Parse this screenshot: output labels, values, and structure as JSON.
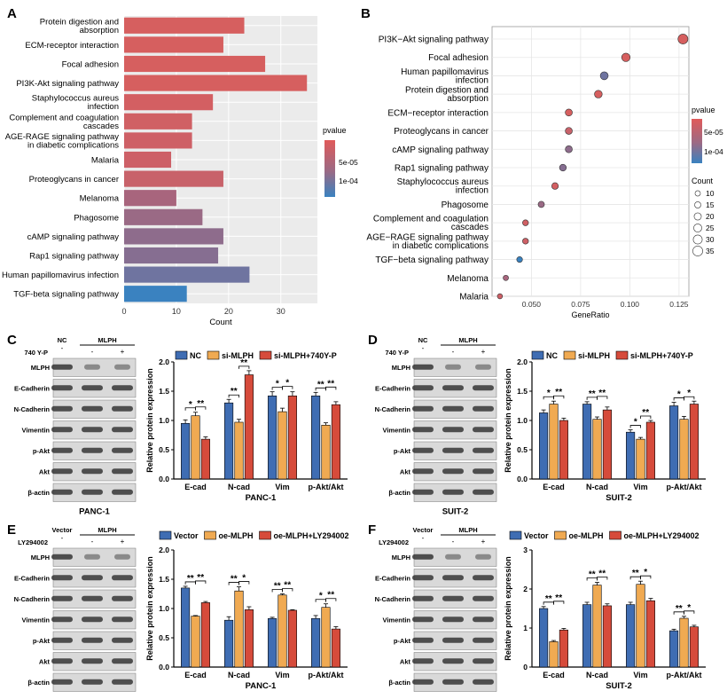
{
  "panels": {
    "A": {
      "letter": "A",
      "type": "bar",
      "orientation": "horizontal",
      "categories": [
        "Protein digestion and absorption",
        "ECM-receptor interaction",
        "Focal adhesion",
        "PI3K-Akt signaling pathway",
        "Staphylococcus aureus infection",
        "Complement and coagulation cascades",
        "AGE-RAGE signaling pathway in diabetic complications",
        "Malaria",
        "Proteoglycans in cancer",
        "Melanoma",
        "Phagosome",
        "cAMP signaling pathway",
        "Rap1 signaling pathway",
        "Human papillomavirus infection",
        "TGF-beta signaling pathway"
      ],
      "label_lines": [
        [
          "Protein digestion and",
          "absorption"
        ],
        [
          "ECM-receptor interaction"
        ],
        [
          "Focal adhesion"
        ],
        [
          "PI3K-Akt signaling pathway"
        ],
        [
          "Staphylococcus aureus",
          "infection"
        ],
        [
          "Complement and coagulation",
          "cascades"
        ],
        [
          "AGE-RAGE signaling pathway",
          "in diabetic complications"
        ],
        [
          "Malaria"
        ],
        [
          "Proteoglycans in cancer"
        ],
        [
          "Melanoma"
        ],
        [
          "Phagosome"
        ],
        [
          "cAMP signaling pathway"
        ],
        [
          "Rap1 signaling pathway"
        ],
        [
          "Human papillomavirus infection"
        ],
        [
          "TGF-beta signaling pathway"
        ]
      ],
      "values": [
        23,
        19,
        27,
        35,
        17,
        13,
        13,
        9,
        19,
        10,
        15,
        19,
        18,
        24,
        12
      ],
      "colors": [
        "#d65f5f",
        "#d65f5f",
        "#d65f5f",
        "#d65f5f",
        "#d35f62",
        "#d06064",
        "#ce6066",
        "#cd6067",
        "#c8626a",
        "#a8657d",
        "#9a6a85",
        "#8e6c8c",
        "#866e91",
        "#6f74a0",
        "#3a82c0"
      ],
      "xlabel": "Count",
      "xlim": [
        0,
        37
      ],
      "xticks": [
        0,
        10,
        20,
        30
      ],
      "legend": {
        "title": "pvalue",
        "labels": [
          "5e-05",
          "1e-04"
        ],
        "color_high": "#e05a5a",
        "color_low": "#3a82c0"
      }
    },
    "B": {
      "letter": "B",
      "type": "scatter",
      "categories": [
        "PI3K-Akt signaling pathway",
        "Focal adhesion",
        "Human papillomavirus infection",
        "Protein digestion and absorption",
        "ECM-receptor interaction",
        "Proteoglycans in cancer",
        "cAMP signaling pathway",
        "Rap1 signaling pathway",
        "Staphylococcus aureus infection",
        "Phagosome",
        "Complement and coagulation cascades",
        "AGE-RAGE signaling pathway in diabetic complications",
        "TGF-beta signaling pathway",
        "Melanoma",
        "Malaria"
      ],
      "label_lines": [
        [
          "PI3K−Akt signaling pathway"
        ],
        [
          "Focal adhesion"
        ],
        [
          "Human papillomavirus",
          "infection"
        ],
        [
          "Protein digestion and",
          "absorption"
        ],
        [
          "ECM−receptor interaction"
        ],
        [
          "Proteoglycans in cancer"
        ],
        [
          "cAMP signaling pathway"
        ],
        [
          "Rap1 signaling pathway"
        ],
        [
          "Staphylococcus aureus",
          "infection"
        ],
        [
          "Phagosome"
        ],
        [
          "Complement and coagulation",
          "cascades"
        ],
        [
          "AGE−RAGE signaling pathway",
          "in diabetic complications"
        ],
        [
          "TGF−beta signaling pathway"
        ],
        [
          "Melanoma"
        ],
        [
          "Malaria"
        ]
      ],
      "gene_ratio": [
        0.127,
        0.098,
        0.087,
        0.084,
        0.069,
        0.069,
        0.069,
        0.066,
        0.062,
        0.055,
        0.047,
        0.047,
        0.044,
        0.037,
        0.034
      ],
      "count": [
        35,
        27,
        24,
        23,
        19,
        19,
        19,
        18,
        17,
        15,
        13,
        13,
        12,
        10,
        9
      ],
      "colors": [
        "#d65f5f",
        "#d65f5f",
        "#6f74a0",
        "#d65f5f",
        "#d65f5f",
        "#c8626a",
        "#8e6c8c",
        "#866e91",
        "#d35f62",
        "#9a6a85",
        "#d06064",
        "#ce6066",
        "#3a82c0",
        "#a8657d",
        "#cd6067"
      ],
      "xlabel": "GeneRatio",
      "xlim": [
        0.03,
        0.13
      ],
      "xticks": [
        0.05,
        0.075,
        0.1,
        0.125
      ],
      "xtick_labels": [
        "0.050",
        "0.075",
        "0.100",
        "0.125"
      ],
      "legend_pvalue": {
        "title": "pvalue",
        "labels": [
          "5e-05",
          "1e-04"
        ]
      },
      "legend_count": {
        "title": "Count",
        "labels": [
          "10",
          "15",
          "20",
          "25",
          "30",
          "35"
        ],
        "values": [
          10,
          15,
          20,
          25,
          30,
          35
        ]
      }
    },
    "C": {
      "letter": "C",
      "blot": {
        "treat_label": "740 Y-P",
        "col_headers": [
          "NC",
          "MLPH"
        ],
        "treat_signs": [
          "-",
          "-",
          "+"
        ],
        "rows": [
          "MLPH",
          "E-Cadherin",
          "N-Cadherin",
          "Vimentin",
          "p-Akt",
          "Akt",
          "β-actin"
        ],
        "cell_line": "PANC-1"
      },
      "chart": {
        "type": "bar",
        "categories": [
          "E-cad",
          "N-cad",
          "Vim",
          "p-Akt/Akt"
        ],
        "series": [
          {
            "name": "NC",
            "values": [
              0.95,
              1.3,
              1.42,
              1.42
            ],
            "errors": [
              0.06,
              0.06,
              0.07,
              0.06
            ]
          },
          {
            "name": "si-MLPH",
            "values": [
              1.08,
              0.97,
              1.15,
              0.92
            ],
            "errors": [
              0.06,
              0.05,
              0.06,
              0.04
            ]
          },
          {
            "name": "si-MLPH+740Y-P",
            "values": [
              0.68,
              1.78,
              1.42,
              1.27
            ],
            "errors": [
              0.04,
              0.07,
              0.07,
              0.05
            ]
          }
        ],
        "colors": [
          "#3f6db3",
          "#f0aa52",
          "#d64b3b"
        ],
        "ylabel": "Relative protein expression",
        "ylim": [
          0,
          2.0
        ],
        "yticks": [
          0.0,
          0.5,
          1.0,
          1.5,
          2.0
        ],
        "ytick_labels": [
          "0.0",
          "0.5",
          "1.0",
          "1.5",
          "2.0"
        ],
        "sig_inner": [
          "*",
          "**",
          "*",
          "**"
        ],
        "sig_outer": [
          "**",
          "**",
          "*",
          "**"
        ],
        "xlabel": "PANC-1"
      }
    },
    "D": {
      "letter": "D",
      "blot": {
        "treat_label": "740 Y-P",
        "col_headers": [
          "NC",
          "MLPH"
        ],
        "treat_signs": [
          "-",
          "-",
          "+"
        ],
        "rows": [
          "MLPH",
          "E-Cadherin",
          "N-Cadherin",
          "Vimentin",
          "p-Akt",
          "Akt",
          "β-actin"
        ],
        "cell_line": "SUIT-2"
      },
      "chart": {
        "type": "bar",
        "categories": [
          "E-cad",
          "N-cad",
          "Vim",
          "p-Akt/Akt"
        ],
        "series": [
          {
            "name": "NC",
            "values": [
              1.13,
              1.28,
              0.8,
              1.25
            ],
            "errors": [
              0.05,
              0.04,
              0.04,
              0.06
            ]
          },
          {
            "name": "si-MLPH",
            "values": [
              1.28,
              1.02,
              0.68,
              1.02
            ],
            "errors": [
              0.05,
              0.04,
              0.03,
              0.05
            ]
          },
          {
            "name": "si-MLPH+740Y-P",
            "values": [
              1.0,
              1.18,
              0.97,
              1.28
            ],
            "errors": [
              0.04,
              0.05,
              0.03,
              0.05
            ]
          }
        ],
        "colors": [
          "#3f6db3",
          "#f0aa52",
          "#d64b3b"
        ],
        "ylabel": "Relative protein expression",
        "ylim": [
          0,
          2.0
        ],
        "yticks": [
          0.0,
          0.5,
          1.0,
          1.5,
          2.0
        ],
        "ytick_labels": [
          "0.0",
          "0.5",
          "1.0",
          "1.5",
          "2.0"
        ],
        "sig_inner": [
          "*",
          "**",
          "*",
          "*"
        ],
        "sig_outer": [
          "**",
          "**",
          "**",
          "*"
        ],
        "xlabel": "SUIT-2"
      }
    },
    "E": {
      "letter": "E",
      "blot": {
        "treat_label": "LY294002",
        "col_headers": [
          "Vector",
          "MLPH"
        ],
        "treat_signs": [
          "-",
          "-",
          "+"
        ],
        "rows": [
          "MLPH",
          "E-Cadherin",
          "N-Cadherin",
          "Vimentin",
          "p-Akt",
          "Akt",
          "β-actin"
        ],
        "cell_line": "PANC-1"
      },
      "chart": {
        "type": "bar",
        "categories": [
          "E-cad",
          "N-cad",
          "Vim",
          "p-Akt/Akt"
        ],
        "series": [
          {
            "name": "Vector",
            "values": [
              1.35,
              0.8,
              0.83,
              0.83
            ],
            "errors": [
              0.03,
              0.06,
              0.02,
              0.05
            ]
          },
          {
            "name": "oe-MLPH",
            "values": [
              0.87,
              1.3,
              1.23,
              1.02
            ],
            "errors": [
              0.01,
              0.07,
              0.02,
              0.06
            ]
          },
          {
            "name": "oe-MLPH+LY294002",
            "values": [
              1.1,
              0.98,
              0.97,
              0.65
            ],
            "errors": [
              0.02,
              0.05,
              0.01,
              0.04
            ]
          }
        ],
        "colors": [
          "#3f6db3",
          "#f0aa52",
          "#d64b3b"
        ],
        "ylabel": "Relative protein expression",
        "ylim": [
          0,
          2.0
        ],
        "yticks": [
          0.0,
          0.5,
          1.0,
          1.5,
          2.0
        ],
        "ytick_labels": [
          "0.0",
          "0.5",
          "1.0",
          "1.5",
          "2.0"
        ],
        "sig_inner": [
          "**",
          "**",
          "**",
          "*"
        ],
        "sig_outer": [
          "**",
          "*",
          "**",
          "**"
        ],
        "xlabel": "PANC-1"
      }
    },
    "F": {
      "letter": "F",
      "blot": {
        "treat_label": "LY294002",
        "col_headers": [
          "Vector",
          "MLPH"
        ],
        "treat_signs": [
          "-",
          "-",
          "+"
        ],
        "rows": [
          "MLPH",
          "E-Cadherin",
          "N-Cadherin",
          "Vimentin",
          "p-Akt",
          "Akt",
          "β-actin"
        ],
        "cell_line": "SUIT-2"
      },
      "chart": {
        "type": "bar",
        "categories": [
          "E-cad",
          "N-cad",
          "Vim",
          "p-Akt/Akt"
        ],
        "series": [
          {
            "name": "Vector",
            "values": [
              1.5,
              1.6,
              1.6,
              0.93
            ],
            "errors": [
              0.05,
              0.06,
              0.06,
              0.04
            ]
          },
          {
            "name": "oe-MLPH",
            "values": [
              0.65,
              2.1,
              2.12,
              1.25
            ],
            "errors": [
              0.03,
              0.07,
              0.08,
              0.05
            ]
          },
          {
            "name": "oe-MLPH+LY294002",
            "values": [
              0.95,
              1.57,
              1.7,
              1.03
            ],
            "errors": [
              0.04,
              0.05,
              0.06,
              0.04
            ]
          }
        ],
        "colors": [
          "#3f6db3",
          "#f0aa52",
          "#d64b3b"
        ],
        "ylabel": "Relative protein expression",
        "ylim": [
          0,
          3.0
        ],
        "yticks": [
          0,
          1,
          2,
          3
        ],
        "ytick_labels": [
          "0",
          "1",
          "2",
          "3"
        ],
        "sig_inner": [
          "**",
          "**",
          "**",
          "**"
        ],
        "sig_outer": [
          "**",
          "**",
          "*",
          "*"
        ],
        "xlabel": "SUIT-2"
      }
    }
  }
}
